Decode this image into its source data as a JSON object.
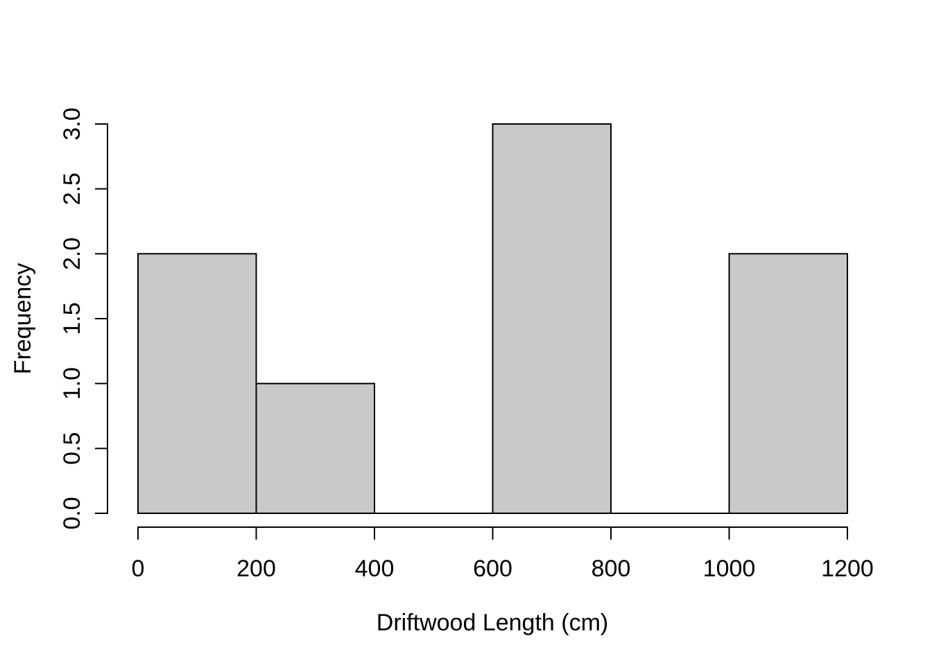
{
  "figure": {
    "background": "#FFFFFF"
  },
  "chart_data": {
    "type": "bar",
    "subtype": "histogram",
    "title": "",
    "xlabel": "Driftwood Length (cm)",
    "ylabel": "Frequency",
    "bin_edges": [
      0,
      200,
      400,
      600,
      800,
      1000,
      1200
    ],
    "counts": [
      2,
      1,
      0,
      3,
      0,
      2
    ],
    "x_tick_values": [
      0,
      200,
      400,
      600,
      800,
      1000,
      1200
    ],
    "x_tick_labels": [
      "0",
      "200",
      "400",
      "600",
      "800",
      "1000",
      "1200"
    ],
    "y_tick_values": [
      0,
      0.5,
      1,
      1.5,
      2,
      2.5,
      3
    ],
    "y_tick_labels": [
      "0.0",
      "0.5",
      "1.0",
      "1.5",
      "2.0",
      "2.5",
      "3.0"
    ],
    "xlim": [
      0,
      1200
    ],
    "ylim": [
      0,
      3
    ],
    "grid": false,
    "legend": false,
    "bar_fill": "#C9C9C9",
    "bar_stroke": "#000000",
    "axis_color": "#000000",
    "text_color": "#000000"
  }
}
